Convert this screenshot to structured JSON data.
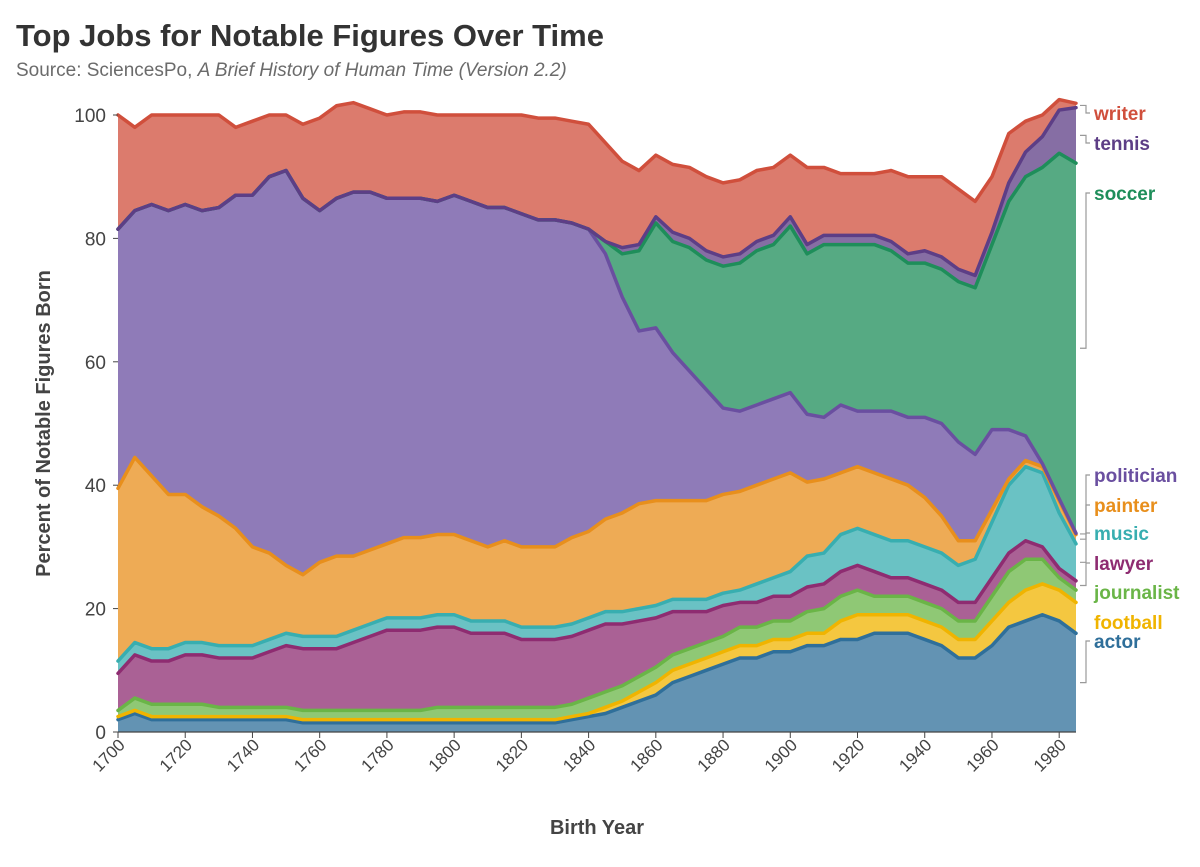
{
  "header": {
    "title": "Top Jobs for Notable Figures Over Time",
    "source_prefix": "Source: SciencesPo, ",
    "source_title": "A Brief History of Human Time (Version 2.2)"
  },
  "chart_data": {
    "type": "area",
    "stacked": true,
    "xlabel": "Birth Year",
    "ylabel": "Percent of Notable Figures Born",
    "xlim": [
      1700,
      1985
    ],
    "ylim": [
      0,
      100
    ],
    "x_ticks": [
      "1700",
      "1720",
      "1740",
      "1760",
      "1780",
      "1800",
      "1820",
      "1840",
      "1860",
      "1880",
      "1900",
      "1920",
      "1940",
      "1960",
      "1980"
    ],
    "y_ticks": [
      "0",
      "20",
      "40",
      "60",
      "80",
      "100"
    ],
    "grid": false,
    "legend": "direct labels at right end",
    "x": [
      1700,
      1705,
      1710,
      1715,
      1720,
      1725,
      1730,
      1735,
      1740,
      1745,
      1750,
      1755,
      1760,
      1765,
      1770,
      1775,
      1780,
      1785,
      1790,
      1795,
      1800,
      1805,
      1810,
      1815,
      1820,
      1825,
      1830,
      1835,
      1840,
      1845,
      1850,
      1855,
      1860,
      1865,
      1870,
      1875,
      1880,
      1885,
      1890,
      1895,
      1900,
      1905,
      1910,
      1915,
      1920,
      1925,
      1930,
      1935,
      1940,
      1945,
      1950,
      1955,
      1960,
      1965,
      1970,
      1975,
      1980,
      1985
    ],
    "series": [
      {
        "name": "actor",
        "color": "#2f6f9a",
        "values": [
          2,
          3,
          2,
          2,
          2,
          2,
          2,
          2,
          2,
          2,
          2,
          1.5,
          1.5,
          1.5,
          1.5,
          1.5,
          1.5,
          1.5,
          1.5,
          1.5,
          1.5,
          1.5,
          1.5,
          1.5,
          1.5,
          1.5,
          1.5,
          2,
          2.5,
          3,
          4,
          5,
          6,
          8,
          9,
          10,
          11,
          12,
          12,
          13,
          13,
          14,
          14,
          15,
          15,
          16,
          16,
          16,
          15,
          14,
          12,
          12,
          14,
          17,
          18,
          19,
          18,
          16
        ]
      },
      {
        "name": "football",
        "color": "#f0b400",
        "values": [
          0.5,
          0.5,
          0.5,
          0.5,
          0.5,
          0.5,
          0.5,
          0.5,
          0.5,
          0.5,
          0.5,
          0.5,
          0.5,
          0.5,
          0.5,
          0.5,
          0.5,
          0.5,
          0.5,
          0.5,
          0.5,
          0.5,
          0.5,
          0.5,
          0.5,
          0.5,
          0.5,
          0.5,
          0.5,
          1,
          1,
          1.5,
          2,
          2,
          2,
          2,
          2,
          2,
          2,
          2,
          2,
          2,
          2,
          3,
          4,
          3,
          3,
          3,
          3,
          3,
          3,
          3,
          4,
          4,
          5,
          5,
          5,
          5
        ]
      },
      {
        "name": "journalist",
        "color": "#6ab547",
        "values": [
          1,
          2,
          2,
          2,
          2,
          2,
          1.5,
          1.5,
          1.5,
          1.5,
          1.5,
          1.5,
          1.5,
          1.5,
          1.5,
          1.5,
          1.5,
          1.5,
          1.5,
          2,
          2,
          2,
          2,
          2,
          2,
          2,
          2,
          2,
          2.5,
          2.5,
          2.5,
          2.5,
          2.5,
          2.5,
          2.5,
          2.5,
          2.5,
          3,
          3,
          3,
          3,
          3.5,
          4,
          4,
          4,
          3,
          3,
          3,
          3,
          3,
          3,
          3,
          4,
          5,
          5,
          4,
          2,
          2
        ]
      },
      {
        "name": "lawyer",
        "color": "#8e2c71",
        "values": [
          6,
          7,
          7,
          7,
          8,
          8,
          8,
          8,
          8,
          9,
          10,
          10,
          10,
          10,
          11,
          12,
          13,
          13,
          13,
          13,
          13,
          12,
          12,
          12,
          11,
          11,
          11,
          11,
          11,
          11,
          10,
          9,
          8,
          7,
          6,
          5,
          5,
          4,
          4,
          4,
          4,
          4,
          4,
          4,
          4,
          4,
          3,
          3,
          3,
          3,
          3,
          3,
          3,
          3,
          3,
          2,
          1.5,
          1.5
        ]
      },
      {
        "name": "music",
        "color": "#38aeb0",
        "values": [
          2,
          2,
          2,
          2,
          2,
          2,
          2,
          2,
          2,
          2,
          2,
          2,
          2,
          2,
          2,
          2,
          2,
          2,
          2,
          2,
          2,
          2,
          2,
          2,
          2,
          2,
          2,
          2,
          2,
          2,
          2,
          2,
          2,
          2,
          2,
          2,
          2,
          2,
          3,
          3,
          4,
          5,
          5,
          6,
          6,
          6,
          6,
          6,
          6,
          6,
          6,
          7,
          9,
          11,
          12,
          12,
          9,
          6
        ]
      },
      {
        "name": "painter",
        "color": "#e88f1c",
        "values": [
          28,
          30,
          28,
          25,
          24,
          22,
          21,
          19,
          16,
          14,
          11,
          10,
          12,
          13,
          12,
          12,
          12,
          13,
          13,
          13,
          13,
          13,
          12,
          13,
          13,
          13,
          13,
          14,
          14,
          15,
          16,
          17,
          17,
          16,
          16,
          16,
          16,
          16,
          16,
          16,
          16,
          12,
          12,
          10,
          10,
          10,
          10,
          9,
          8,
          6,
          4,
          3,
          2,
          1,
          1,
          1,
          2,
          1.5
        ]
      },
      {
        "name": "politician",
        "color": "#6a4fa0",
        "values": [
          42,
          40,
          44,
          46,
          47,
          48,
          50,
          54,
          57,
          61,
          64,
          61,
          57,
          58,
          59,
          58,
          56,
          55,
          55,
          54,
          55,
          55,
          55,
          54,
          54,
          53,
          53,
          51,
          49,
          43,
          35,
          28,
          28,
          24,
          21,
          18,
          14,
          13,
          13,
          13,
          13,
          11,
          10,
          11,
          9,
          10,
          11,
          11,
          13,
          15,
          16,
          14,
          13,
          8,
          4,
          0.5,
          0.3,
          0.2
        ]
      },
      {
        "name": "soccer",
        "color": "#1e8e5a",
        "values": [
          0,
          0,
          0,
          0,
          0,
          0,
          0,
          0,
          0,
          0,
          0,
          0,
          0,
          0,
          0,
          0,
          0,
          0,
          0,
          0,
          0,
          0,
          0,
          0,
          0,
          0,
          0,
          0,
          0,
          2,
          7,
          13,
          17,
          18,
          20,
          21,
          23,
          24,
          25,
          25,
          27,
          26,
          28,
          26,
          27,
          27,
          26,
          25,
          25,
          25,
          26,
          27,
          30,
          37,
          42,
          48,
          56,
          60
        ]
      },
      {
        "name": "tennis",
        "color": "#5d3e86",
        "values": [
          0,
          0,
          0,
          0,
          0,
          0,
          0,
          0,
          0,
          0,
          0,
          0,
          0,
          0,
          0,
          0,
          0,
          0,
          0,
          0,
          0,
          0,
          0,
          0,
          0,
          0,
          0,
          0,
          0,
          0,
          1,
          1,
          1,
          1.5,
          1.5,
          1.5,
          1.5,
          1.5,
          1.5,
          1.5,
          1.5,
          1.5,
          1.5,
          1.5,
          1.5,
          1.5,
          1.5,
          1.5,
          2,
          2,
          2,
          2,
          2,
          3,
          4,
          5,
          7,
          9
        ]
      },
      {
        "name": "writer",
        "color": "#d04f3c",
        "values": [
          18.5,
          13.5,
          14.5,
          15.5,
          14.5,
          15.5,
          15.0,
          11.0,
          12.0,
          10.0,
          9.0,
          12.0,
          15.0,
          15.0,
          14.5,
          13.5,
          13.5,
          14.0,
          14.0,
          14.0,
          13.0,
          14.0,
          15.0,
          15.0,
          16.0,
          16.5,
          16.5,
          16.5,
          17.0,
          16.0,
          14.0,
          12.0,
          10.0,
          11.0,
          11.5,
          12.0,
          12.0,
          12.0,
          11.5,
          11.0,
          10.0,
          12.5,
          11.0,
          10.0,
          10.0,
          10.0,
          11.5,
          12.5,
          12.0,
          13.0,
          13.0,
          12.0,
          9.0,
          8.0,
          5.0,
          3.5,
          1.7,
          0.7
        ]
      }
    ]
  }
}
